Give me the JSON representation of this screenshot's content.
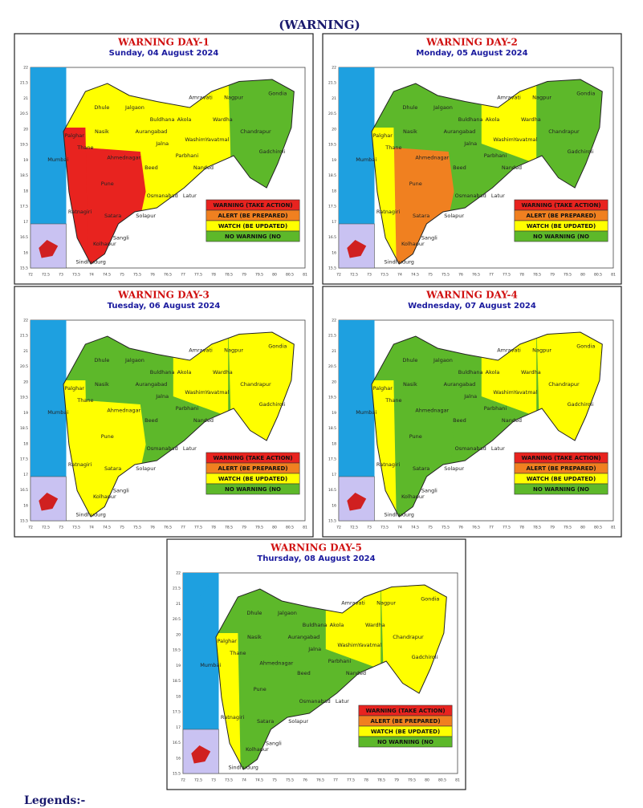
{
  "header": {
    "title": "(WARNING)"
  },
  "panels": [
    {
      "title": "WARNING DAY-1",
      "date": "Sunday, 04 August 2024",
      "region_colors": [
        "#ffff00",
        "#ffff00",
        "#ffff00",
        "#5db82a",
        "#e8231f",
        "#e8231f"
      ]
    },
    {
      "title": "WARNING DAY-2",
      "date": "Monday, 05 August 2024",
      "region_colors": [
        "#5db82a",
        "#5db82a",
        "#ffff00",
        "#5db82a",
        "#f08020",
        "#ffff00"
      ]
    },
    {
      "title": "WARNING DAY-3",
      "date": "Tuesday, 06 August 2024",
      "region_colors": [
        "#5db82a",
        "#5db82a",
        "#ffff00",
        "#ffff00",
        "#ffff00",
        "#ffff00"
      ]
    },
    {
      "title": "WARNING DAY-4",
      "date": "Wednesday, 07 August 2024",
      "region_colors": [
        "#5db82a",
        "#5db82a",
        "#ffff00",
        "#ffff00",
        "#5db82a",
        "#ffff00"
      ]
    },
    {
      "title": "WARNING DAY-5",
      "date": "Thursday, 08 August 2024",
      "region_colors": [
        "#5db82a",
        "#5db82a",
        "#ffff00",
        "#ffff00",
        "#5db82a",
        "#ffff00"
      ]
    }
  ],
  "legend": [
    {
      "label": "WARNING (TAKE ACTION)",
      "color": "#e8231f"
    },
    {
      "label": "ALERT (BE PREPARED)",
      "color": "#f08020"
    },
    {
      "label": "WATCH (BE UPDATED)",
      "color": "#ffff00"
    },
    {
      "label": "NO WARNING (NO",
      "color": "#5db82a"
    }
  ],
  "districts": [
    "Dhule",
    "Jalgaon",
    "Amravati",
    "Nagpur",
    "Gondia",
    "Nasik",
    "Akola",
    "Wardha",
    "Aurangabad",
    "Jalna",
    "Washim",
    "Yavatmal",
    "Chandrapur",
    "Thane",
    "Mumbai",
    "Ahmednagar",
    "Beed",
    "Parbhani",
    "Nanded",
    "Pune",
    "Latur",
    "Osmanabad",
    "Gadchiroli",
    "Satara",
    "Solapur",
    "Ratnagiri",
    "Sangli",
    "Kolhapur",
    "Sindhudurg",
    "Palghar",
    "Buldhana"
  ],
  "map_xticks": [
    72,
    72.5,
    73,
    73.5,
    74,
    74.5,
    75,
    75.5,
    76,
    76.5,
    77,
    77.5,
    78,
    78.5,
    79,
    79.5,
    80,
    80.5,
    81
  ],
  "map_yticks": [
    15.5,
    16,
    16.5,
    17,
    17.5,
    18,
    18.5,
    19,
    19.5,
    20,
    20.5,
    21,
    21.5,
    22
  ],
  "footer": {
    "label": "Legends:-"
  }
}
